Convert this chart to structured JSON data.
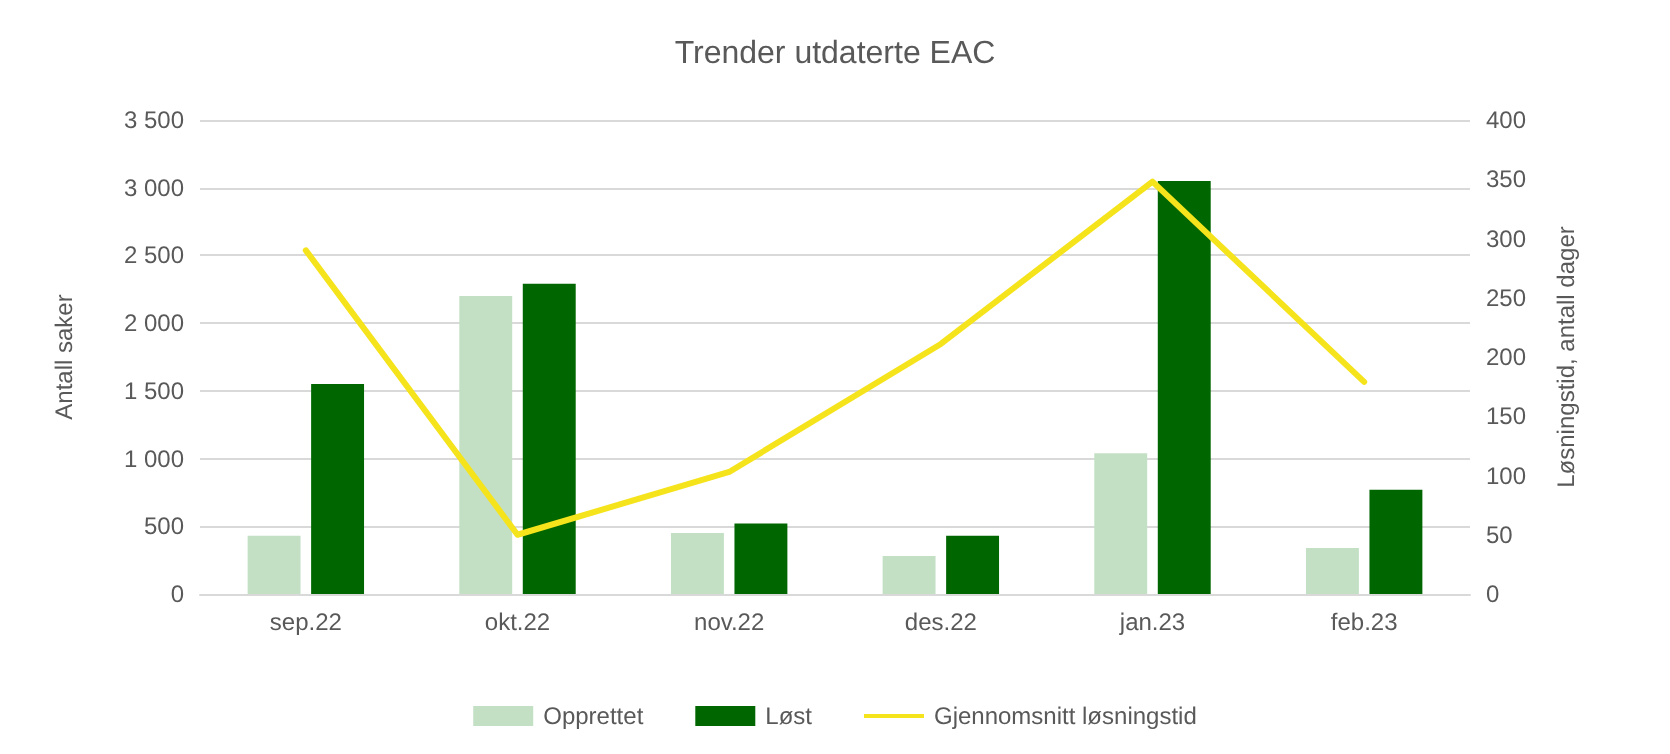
{
  "chart_data": {
    "type": "bar",
    "title": "Trender utdaterte EAC",
    "ylabel": "Antall saker",
    "y2label": "Løsningstid, antall dager",
    "categories": [
      "sep.22",
      "okt.22",
      "nov.22",
      "des.22",
      "jan.23",
      "feb.23"
    ],
    "series": [
      {
        "name": "Opprettet",
        "color": "#c3e0c5",
        "values": [
          430,
          2200,
          450,
          280,
          1040,
          340
        ]
      },
      {
        "name": "Løst",
        "color": "#006600",
        "values": [
          1550,
          2290,
          520,
          430,
          3050,
          770
        ]
      },
      {
        "name": "Gjennomsnitt løsningstid",
        "type": "line",
        "axis": "y2",
        "color": "#f5e31b",
        "values": [
          290,
          50,
          103,
          211,
          348,
          179
        ]
      }
    ],
    "ylim": [
      0,
      3500
    ],
    "yticks": [
      0,
      {
        "value": 500,
        "label": "500"
      },
      {
        "value": 1000,
        "label": "1 000"
      },
      {
        "value": 1500,
        "label": "1 500"
      },
      {
        "value": 2000,
        "label": "2 000"
      },
      {
        "value": 2500,
        "label": "2 500"
      },
      {
        "value": 3000,
        "label": "3 000"
      },
      {
        "value": 3500,
        "label": "3 500"
      }
    ],
    "y2lim": [
      0,
      400
    ],
    "y2ticks": [
      0,
      50,
      100,
      150,
      200,
      250,
      300,
      350,
      400
    ],
    "grid": "y",
    "legend": "bottom",
    "marker": "none",
    "line_style": "solid"
  }
}
